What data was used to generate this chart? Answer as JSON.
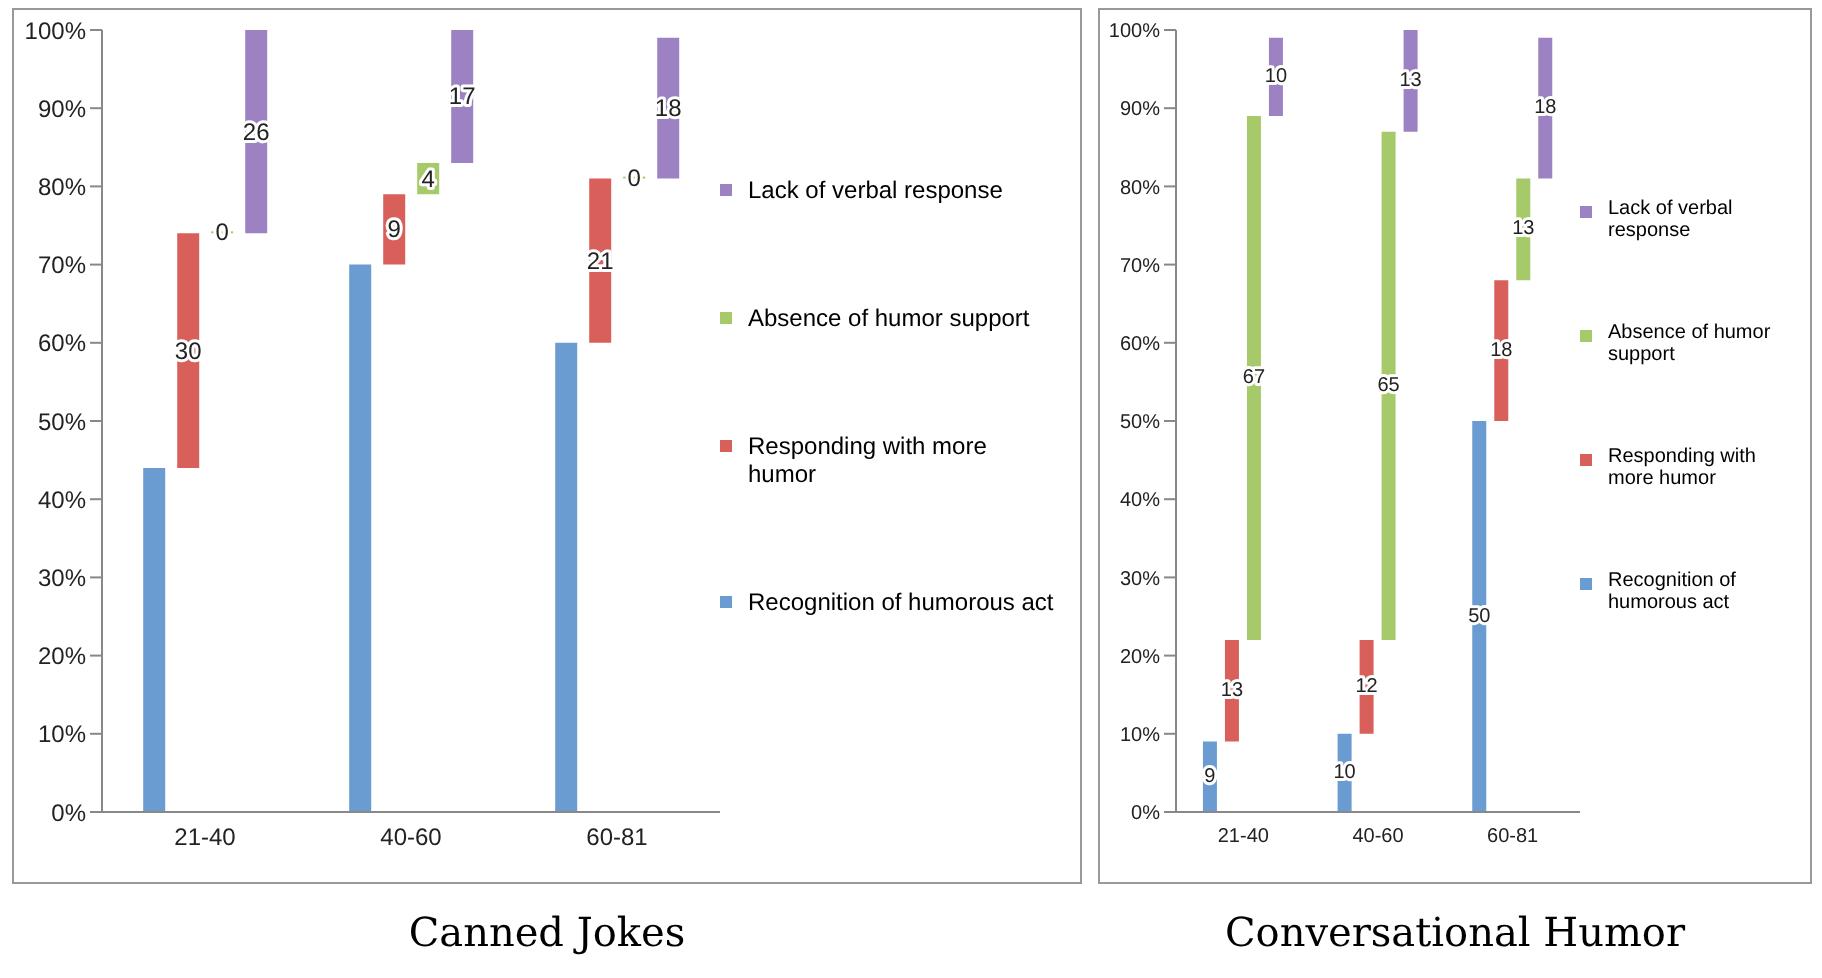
{
  "chart_data": [
    {
      "type": "bar",
      "title": "Canned Jokes",
      "categories": [
        "21-40",
        "40-60",
        "60-81"
      ],
      "ylim": [
        0,
        100
      ],
      "yticks": [
        {
          "value": 0,
          "label": "0%"
        },
        {
          "value": 10,
          "label": "10%"
        },
        {
          "value": 20,
          "label": "20%"
        },
        {
          "value": 30,
          "label": "30%"
        },
        {
          "value": 40,
          "label": "40%"
        },
        {
          "value": 50,
          "label": "50%"
        },
        {
          "value": 60,
          "label": "60%"
        },
        {
          "value": 70,
          "label": "70%"
        },
        {
          "value": 80,
          "label": "80%"
        },
        {
          "value": 90,
          "label": "90%"
        },
        {
          "value": 100,
          "label": "100%"
        }
      ],
      "legend": "right",
      "series": [
        {
          "name": "Recognition of humorous act",
          "color": "#6a9bd1",
          "values": [
            44,
            70,
            60
          ],
          "base": [
            0,
            0,
            0
          ],
          "value_labels": [
            null,
            null,
            null
          ]
        },
        {
          "name": "Responding with more humor",
          "color": "#d9605a",
          "values": [
            30,
            9,
            21
          ],
          "base": [
            44,
            70,
            60
          ],
          "value_labels": [
            "30",
            "9",
            "21"
          ]
        },
        {
          "name": "Absence of humor support",
          "color": "#a6c96a",
          "values": [
            0,
            4,
            0
          ],
          "base": [
            74,
            79,
            81
          ],
          "value_labels": [
            "0",
            "4",
            "0"
          ]
        },
        {
          "name": "Lack of verbal response",
          "color": "#9c82c2",
          "values": [
            26,
            17,
            18
          ],
          "base": [
            74,
            83,
            81
          ],
          "value_labels": [
            "26",
            "17",
            "18"
          ]
        }
      ]
    },
    {
      "type": "bar",
      "title": "Conversational Humor",
      "categories": [
        "21-40",
        "40-60",
        "60-81"
      ],
      "ylim": [
        0,
        100
      ],
      "yticks": [
        {
          "value": 0,
          "label": "0%"
        },
        {
          "value": 10,
          "label": "10%"
        },
        {
          "value": 20,
          "label": "20%"
        },
        {
          "value": 30,
          "label": "30%"
        },
        {
          "value": 40,
          "label": "40%"
        },
        {
          "value": 50,
          "label": "50%"
        },
        {
          "value": 60,
          "label": "60%"
        },
        {
          "value": 70,
          "label": "70%"
        },
        {
          "value": 80,
          "label": "80%"
        },
        {
          "value": 90,
          "label": "90%"
        },
        {
          "value": 100,
          "label": "100%"
        }
      ],
      "legend": "right",
      "series": [
        {
          "name": "Recognition of humorous act",
          "color": "#6a9bd1",
          "values": [
            9,
            10,
            50
          ],
          "base": [
            0,
            0,
            0
          ],
          "value_labels": [
            "9",
            "10",
            "50"
          ]
        },
        {
          "name": "Responding with more humor",
          "color": "#d9605a",
          "values": [
            13,
            12,
            18
          ],
          "base": [
            9,
            10,
            50
          ],
          "value_labels": [
            "13",
            "12",
            "18"
          ]
        },
        {
          "name": "Absence of humor support",
          "color": "#a6c96a",
          "values": [
            67,
            65,
            13
          ],
          "base": [
            22,
            22,
            68
          ],
          "value_labels": [
            "67",
            "65",
            "13"
          ]
        },
        {
          "name": "Lack of verbal response",
          "color": "#9c82c2",
          "values": [
            10,
            13,
            18
          ],
          "base": [
            89,
            87,
            81
          ],
          "value_labels": [
            "10",
            "13",
            "18"
          ]
        }
      ]
    }
  ]
}
